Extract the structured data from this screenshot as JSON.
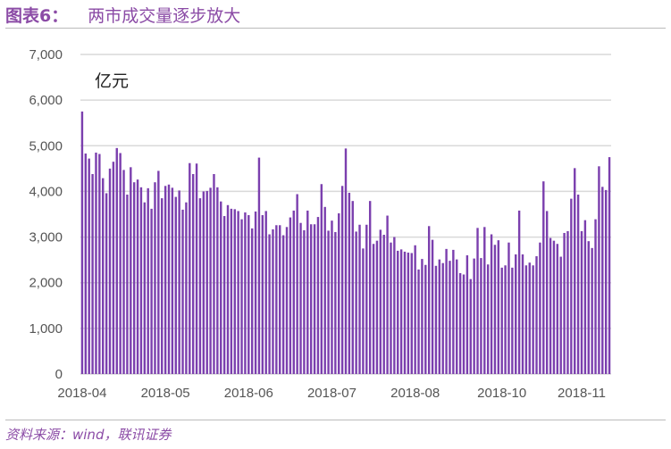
{
  "header": {
    "label": "图表6：",
    "title": "两市成交量逐步放大"
  },
  "source": "资料来源：wind，联讯证券",
  "chart_data": {
    "type": "bar",
    "title": "两市成交量逐步放大",
    "ylabel": "亿元",
    "xlabel": "",
    "ylim": [
      0,
      7000
    ],
    "yticks": [
      0,
      1000,
      2000,
      3000,
      4000,
      5000,
      6000,
      7000
    ],
    "ytick_labels": [
      "0",
      "1,000",
      "2,000",
      "3,000",
      "4,000",
      "5,000",
      "6,000",
      "7,000"
    ],
    "grid": true,
    "color": "#7b3fae",
    "xtick_labels": [
      {
        "label": "2018-04",
        "index": 0
      },
      {
        "label": "2018-05",
        "index": 24
      },
      {
        "label": "2018-06",
        "index": 48
      },
      {
        "label": "2018-07",
        "index": 72
      },
      {
        "label": "2018-08",
        "index": 96
      },
      {
        "label": "2018-10",
        "index": 121
      },
      {
        "label": "2018-11",
        "index": 144
      }
    ],
    "values": [
      5750,
      4830,
      4720,
      4380,
      4850,
      4820,
      4290,
      3960,
      4500,
      4650,
      4950,
      4840,
      4470,
      3930,
      4530,
      4200,
      4260,
      4090,
      3760,
      4070,
      3620,
      4200,
      4450,
      3850,
      4120,
      4150,
      4080,
      3880,
      4020,
      3600,
      3760,
      4620,
      4380,
      4610,
      3850,
      4000,
      4010,
      4080,
      4380,
      4090,
      3780,
      3460,
      3700,
      3620,
      3610,
      3570,
      3390,
      3540,
      3480,
      3190,
      3560,
      4740,
      3480,
      3570,
      3060,
      3170,
      3260,
      3260,
      3040,
      3220,
      3430,
      3580,
      3940,
      3310,
      3150,
      3580,
      3280,
      3280,
      3440,
      4160,
      3660,
      3140,
      3360,
      3110,
      3520,
      4120,
      4940,
      3970,
      3790,
      3120,
      3270,
      2750,
      3270,
      3790,
      2850,
      2920,
      3160,
      3050,
      3470,
      2880,
      3000,
      2700,
      2730,
      2680,
      2660,
      2650,
      2820,
      2290,
      2520,
      2390,
      3240,
      2940,
      2370,
      2510,
      2430,
      2740,
      2480,
      2720,
      2510,
      2210,
      2180,
      2600,
      2080,
      2530,
      3200,
      2540,
      3220,
      2400,
      3060,
      2830,
      2930,
      2330,
      2380,
      2880,
      2330,
      2620,
      3580,
      2620,
      2380,
      2440,
      2380,
      2580,
      2880,
      4220,
      3570,
      2980,
      2920,
      2850,
      2570,
      3090,
      3130,
      3840,
      4510,
      3930,
      3130,
      3370,
      2910,
      2760,
      3390,
      4550,
      4100,
      4030,
      4750
    ]
  }
}
